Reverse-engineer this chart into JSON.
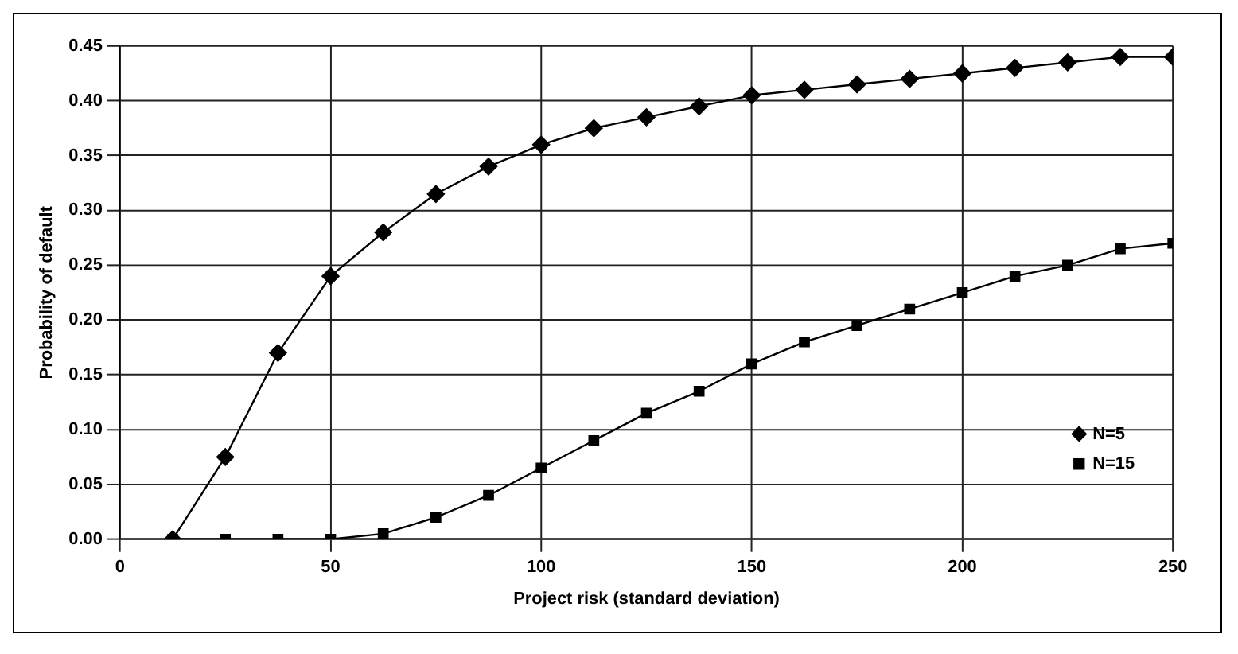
{
  "chart_data": {
    "type": "line",
    "xlabel": "Project risk (standard deviation)",
    "ylabel": "Probability of default",
    "x": [
      12.5,
      25,
      37.5,
      50,
      62.5,
      75,
      87.5,
      100,
      112.5,
      125,
      137.5,
      150,
      162.5,
      175,
      187.5,
      200,
      212.5,
      225,
      237.5,
      250
    ],
    "series": [
      {
        "name": "N=5",
        "color": "#000000",
        "marker": "diamond",
        "values": [
          0,
          0.075,
          0.17,
          0.24,
          0.28,
          0.315,
          0.34,
          0.36,
          0.375,
          0.385,
          0.395,
          0.405,
          0.41,
          0.415,
          0.42,
          0.425,
          0.43,
          0.435,
          0.44,
          0.44
        ]
      },
      {
        "name": "N=15",
        "color": "#000000",
        "marker": "square",
        "values": [
          0,
          0,
          0,
          0,
          0.005,
          0.02,
          0.04,
          0.065,
          0.09,
          0.115,
          0.135,
          0.16,
          0.18,
          0.195,
          0.21,
          0.225,
          0.24,
          0.25,
          0.265,
          0.27
        ]
      }
    ],
    "xlim": [
      0,
      250
    ],
    "xticks": [
      0,
      50,
      100,
      150,
      200,
      250
    ],
    "ylim": [
      0,
      0.45
    ],
    "yticks": [
      {
        "value": 0,
        "label": "0.00"
      },
      0.05,
      {
        "value": 0.1,
        "label": "0.10"
      },
      0.15,
      {
        "value": 0.2,
        "label": "0.20"
      },
      0.25,
      {
        "value": 0.3,
        "label": "0.30"
      },
      0.35,
      {
        "value": 0.4,
        "label": "0.40"
      },
      0.45
    ],
    "grid": true,
    "legend": "bottom right",
    "line_style": "solid"
  }
}
